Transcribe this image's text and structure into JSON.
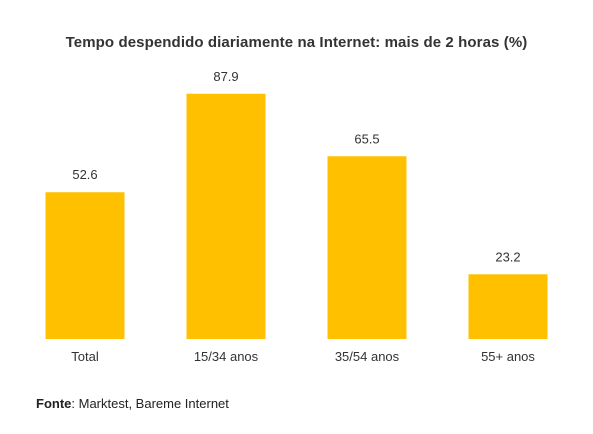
{
  "chart_data": {
    "type": "bar",
    "title": "Tempo despendido diariamente na Internet: mais de 2 horas (%)",
    "categories": [
      "Total",
      "15/34 anos",
      "35/54 anos",
      "55+ anos"
    ],
    "values": [
      52.6,
      87.9,
      65.5,
      23.2
    ],
    "data_labels": [
      "52.6",
      "87.9",
      "65.5",
      "23.2"
    ],
    "xlabel": "",
    "ylabel": "",
    "ylim": [
      0,
      100
    ],
    "grid": false,
    "legend": "none",
    "bar_color": "#FFC000"
  },
  "source": {
    "label": "Fonte",
    "text": ": Marktest, Bareme Internet"
  }
}
